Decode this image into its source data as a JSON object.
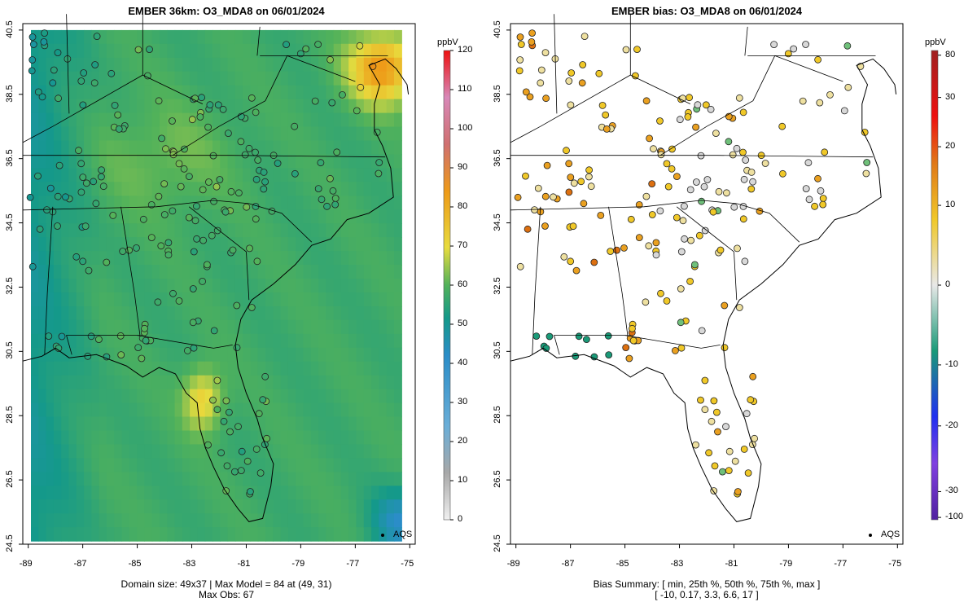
{
  "left_panel": {
    "title": "EMBER 36km: O3_MDA8 on 06/01/2024",
    "caption_line1": "Domain size: 49x37 | Max Model = 84 at (49, 31)",
    "caption_line2": "Max Obs: 67",
    "colorbar_unit": "ppbV",
    "colorbar_ticks": [
      "120",
      "110",
      "100",
      "90",
      "80",
      "70",
      "60",
      "50",
      "40",
      "30",
      "20",
      "10",
      "0"
    ],
    "legend_label": "AQS"
  },
  "right_panel": {
    "title": "EMBER bias: O3_MDA8 on 06/01/2024",
    "caption_line1": "Bias Summary: [ min, 25th %, 50th %, 75th %, max ]",
    "caption_line2": "[ -10,   0.17,   3.3,   6.6,   17 ]",
    "colorbar_unit": "ppbV",
    "colorbar_ticks": [
      "80",
      "30",
      "20",
      "10",
      "0",
      "-10",
      "-20",
      "-30",
      "-100"
    ],
    "legend_label": "AQS"
  },
  "axes": {
    "x_ticks": [
      "-89",
      "-87",
      "-85",
      "-83",
      "-81",
      "-79",
      "-77",
      "-75"
    ],
    "y_ticks": [
      "40.5",
      "38.5",
      "36.5",
      "34.5",
      "32.5",
      "30.5",
      "28.5",
      "26.5",
      "24.5"
    ]
  },
  "chart_data": [
    {
      "type": "heatmap",
      "title": "EMBER 36km: O3_MDA8 on 06/01/2024",
      "unit": "ppbV",
      "xlim": [
        -89.2,
        -74.8
      ],
      "ylim": [
        24.5,
        40.7
      ],
      "grid_size": [
        49,
        37
      ],
      "max_model": 84,
      "max_model_at": [
        49,
        31
      ],
      "max_obs": 67,
      "colorbar_range": [
        0,
        120
      ],
      "colors": {
        "low": "#3a9ad6",
        "mid": "#1e9c78",
        "high": "#f2d540",
        "max": "#ee9a18"
      }
    },
    {
      "type": "scatter",
      "title": "EMBER bias: O3_MDA8 on 06/01/2024",
      "unit": "ppbV",
      "xlim": [
        -89.2,
        -74.8
      ],
      "ylim": [
        24.5,
        40.7
      ],
      "bias_summary": {
        "min": -10,
        "p25": 0.17,
        "p50": 3.3,
        "p75": 6.6,
        "max": 17
      },
      "colorbar_range": [
        -100,
        80
      ]
    }
  ]
}
